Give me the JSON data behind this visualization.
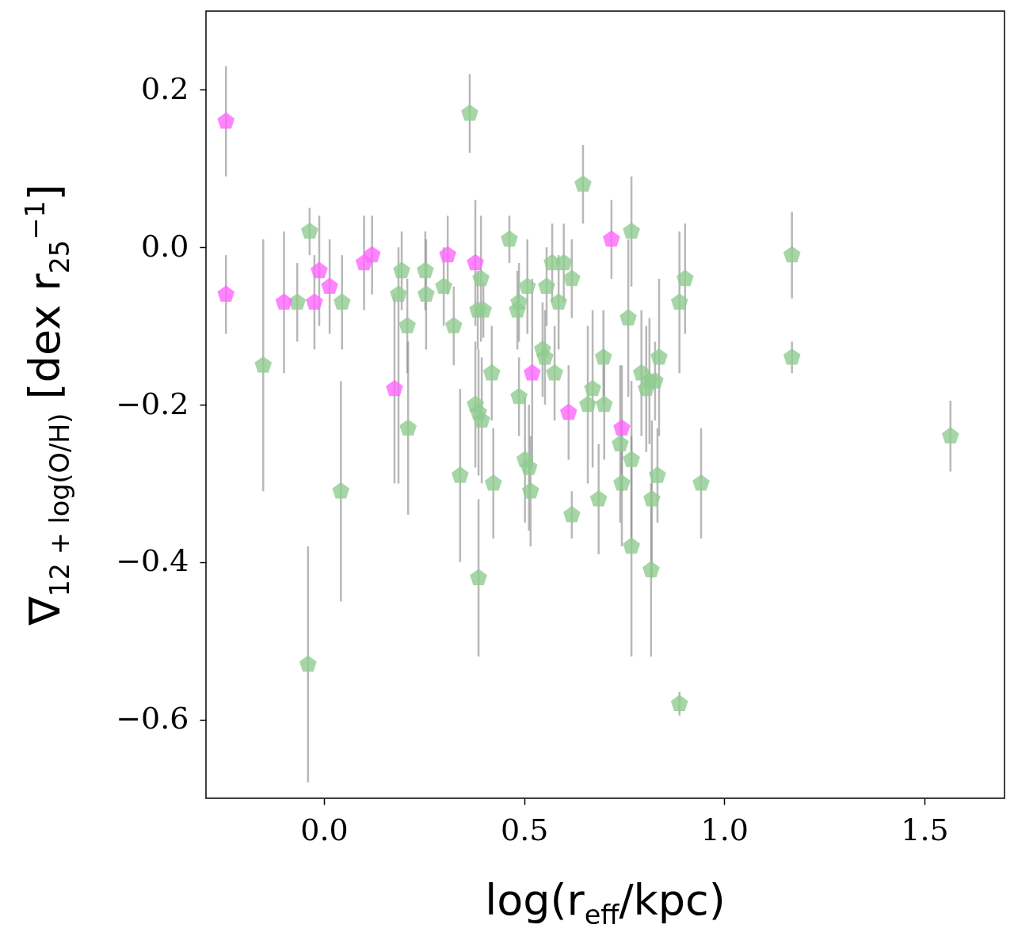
{
  "chart_data": {
    "type": "scatter",
    "xlabel": "log(r$_{eff}$/kpc)",
    "ylabel": "∇$_{12 + log(O/H)}$ [dex r$_{25}$$^{−1}$]",
    "xlim": [
      -0.295,
      1.7
    ],
    "ylim": [
      -0.7,
      0.3
    ],
    "xticks": [
      {
        "value": 0,
        "label": "0.0"
      },
      0.5,
      {
        "value": 1,
        "label": "1.0"
      },
      1.5
    ],
    "yticks": [
      {
        "value": -0.6,
        "label": "−0.6"
      },
      {
        "value": -0.4,
        "label": "−0.4"
      },
      {
        "value": -0.2,
        "label": "−0.2"
      },
      {
        "value": 0,
        "label": "0.0"
      },
      0.2
    ],
    "grid": false,
    "series": [
      {
        "color": "#90cc90",
        "x": [
          0.364,
          0.647,
          0.768,
          -0.036,
          0.463,
          1.169,
          0.902,
          0.888,
          1.169,
          1.565,
          0.942,
          0.888,
          -0.152,
          -0.067,
          0.045,
          0.042,
          -0.04,
          0.194,
          0.186,
          0.208,
          0.21,
          0.253,
          0.255,
          0.299,
          0.324,
          0.34,
          0.378,
          0.386,
          0.394,
          0.392,
          0.384,
          0.398,
          0.386,
          0.419,
          0.423,
          0.487,
          0.483,
          0.487,
          0.502,
          0.512,
          0.516,
          0.508,
          0.546,
          0.552,
          0.556,
          0.57,
          0.576,
          0.586,
          0.599,
          0.619,
          0.619,
          0.659,
          0.671,
          0.686,
          0.698,
          0.7,
          0.744,
          0.74,
          0.76,
          0.768,
          0.768,
          0.793,
          0.805,
          0.813,
          0.827,
          0.819,
          0.817,
          0.833,
          0.837
        ],
        "values": [
          0.17,
          0.08,
          0.02,
          0.02,
          0.01,
          -0.01,
          -0.04,
          -0.07,
          -0.14,
          -0.24,
          -0.3,
          -0.58,
          -0.15,
          -0.07,
          -0.07,
          -0.31,
          -0.53,
          -0.03,
          -0.06,
          -0.1,
          -0.23,
          -0.03,
          -0.06,
          -0.05,
          -0.1,
          -0.29,
          -0.2,
          -0.21,
          -0.22,
          -0.04,
          -0.08,
          -0.08,
          -0.42,
          -0.16,
          -0.3,
          -0.19,
          -0.08,
          -0.07,
          -0.27,
          -0.28,
          -0.31,
          -0.05,
          -0.13,
          -0.14,
          -0.05,
          -0.02,
          -0.16,
          -0.07,
          -0.02,
          -0.04,
          -0.34,
          -0.2,
          -0.18,
          -0.32,
          -0.14,
          -0.2,
          -0.3,
          -0.25,
          -0.09,
          -0.27,
          -0.38,
          -0.16,
          -0.18,
          -0.17,
          -0.17,
          -0.32,
          -0.41,
          -0.29,
          -0.14
        ],
        "errors": [
          0.05,
          0.05,
          0.07,
          0.03,
          0.03,
          0.055,
          0.07,
          0.09,
          0.02,
          0.045,
          0.07,
          0.015,
          0.16,
          0.05,
          0.06,
          0.14,
          0.15,
          0.05,
          [
            -0.3,
            0.0
          ],
          0.06,
          0.11,
          0.05,
          0.07,
          0.05,
          0.05,
          0.11,
          0.08,
          0.08,
          0.08,
          0.08,
          0.05,
          0.035,
          0.1,
          0.06,
          0.07,
          0.05,
          0.05,
          0.05,
          0.08,
          0.08,
          0.07,
          0.06,
          0.06,
          0.06,
          0.05,
          0.05,
          0.06,
          0.06,
          0.05,
          0.05,
          0.03,
          0.1,
          0.1,
          0.07,
          0.06,
          0.07,
          0.08,
          0.1,
          0.1,
          0.1,
          0.14,
          0.08,
          0.08,
          0.08,
          0.05,
          0.1,
          0.11,
          0.06,
          0.1
        ]
      },
      {
        "color": "#ff66ff",
        "x": [
          -0.245,
          -0.245,
          -0.1,
          -0.024,
          -0.012,
          0.014,
          0.1,
          0.12,
          0.176,
          0.309,
          0.378,
          0.52,
          0.611,
          0.718,
          0.744
        ],
        "values": [
          0.16,
          -0.06,
          -0.07,
          -0.07,
          -0.03,
          -0.05,
          -0.02,
          -0.01,
          -0.18,
          -0.01,
          -0.02,
          -0.16,
          -0.21,
          0.01,
          -0.23
        ],
        "errors": [
          0.07,
          0.05,
          0.09,
          0.06,
          0.07,
          0.06,
          0.06,
          0.05,
          0.12,
          0.05,
          0.08,
          0.12,
          0.06,
          0.05,
          0.08
        ]
      }
    ]
  }
}
